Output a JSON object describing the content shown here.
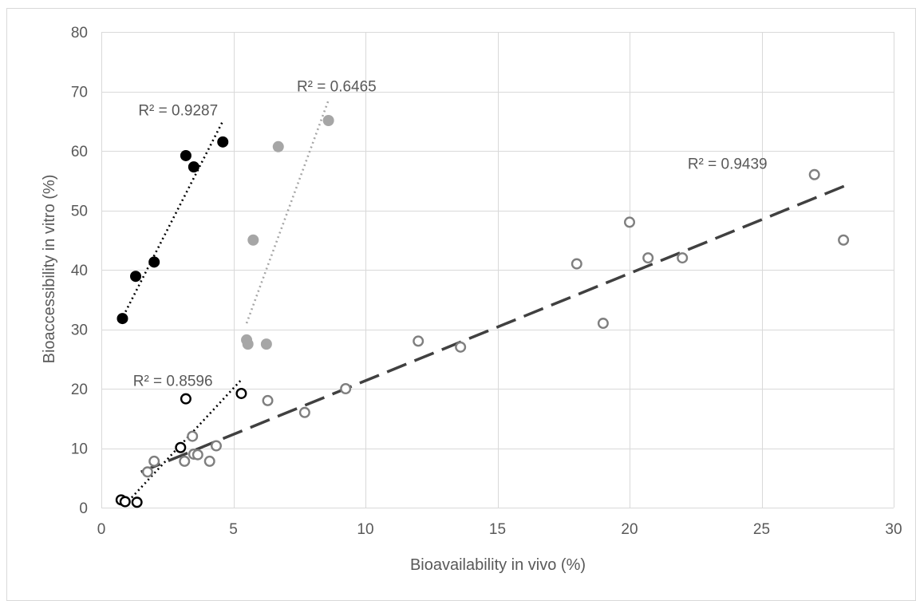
{
  "chart_data": {
    "type": "scatter",
    "xlabel": "Bioavailability in vivo (%)",
    "ylabel": "Bioaccessibility in vitro (%)",
    "xlim": [
      0,
      30
    ],
    "ylim": [
      0,
      80
    ],
    "xticks": [
      "0",
      "5",
      "10",
      "15",
      "20",
      "25",
      "30"
    ],
    "yticks": [
      "0",
      "10",
      "20",
      "30",
      "40",
      "50",
      "60",
      "70",
      "80"
    ],
    "grid": true,
    "series": [
      {
        "marker": "filled-circle",
        "color": "#000000",
        "trendline": "dotted",
        "trendline_color": "#000000",
        "trend_start": [
          0.75,
          31.5
        ],
        "trend_end": [
          4.6,
          65.0
        ],
        "r2_label": "R² = 0.9287",
        "r2_anchor": [
          1.4,
          66.0
        ],
        "points": [
          [
            0.8,
            31.8
          ],
          [
            1.3,
            38.9
          ],
          [
            2.0,
            41.3
          ],
          [
            3.2,
            59.2
          ],
          [
            3.5,
            57.3
          ],
          [
            4.6,
            61.5
          ]
        ]
      },
      {
        "marker": "filled-circle",
        "color": "#a6a6a6",
        "trendline": "dotted",
        "trendline_color": "#a6a6a6",
        "trend_start": [
          5.5,
          31.0
        ],
        "trend_end": [
          8.6,
          68.5
        ],
        "r2_label": "R² = 0.6465",
        "r2_anchor": [
          7.4,
          70.0
        ],
        "points": [
          [
            5.5,
            28.2
          ],
          [
            5.55,
            27.5
          ],
          [
            5.75,
            45.0
          ],
          [
            6.25,
            27.5
          ],
          [
            6.7,
            60.7
          ],
          [
            8.6,
            65.1
          ]
        ]
      },
      {
        "marker": "open-circle",
        "color": "#000000",
        "trendline": "dotted",
        "trendline_color": "#000000",
        "trend_start": [
          0.9,
          0.5
        ],
        "trend_end": [
          5.3,
          21.5
        ],
        "r2_label": "R² = 0.8596",
        "r2_anchor": [
          1.2,
          20.5
        ],
        "points": [
          [
            0.75,
            1.3
          ],
          [
            0.9,
            1.0
          ],
          [
            1.35,
            0.9
          ],
          [
            3.0,
            10.1
          ],
          [
            3.2,
            18.3
          ],
          [
            5.3,
            19.2
          ]
        ]
      },
      {
        "marker": "open-circle",
        "color": "#7f7f7f",
        "trendline": "dashed",
        "trendline_color": "#404040",
        "trend_start": [
          1.5,
          6.0
        ],
        "trend_end": [
          28.2,
          54.2
        ],
        "r2_label": "R² = 0.9439",
        "r2_anchor": [
          22.2,
          57.0
        ],
        "points": [
          [
            1.75,
            6.0
          ],
          [
            2.0,
            7.8
          ],
          [
            3.15,
            7.8
          ],
          [
            3.45,
            12.0
          ],
          [
            3.5,
            9.0
          ],
          [
            3.65,
            8.9
          ],
          [
            4.1,
            7.8
          ],
          [
            4.35,
            10.4
          ],
          [
            6.3,
            18.0
          ],
          [
            7.7,
            16.0
          ],
          [
            9.25,
            20.0
          ],
          [
            12.0,
            28.0
          ],
          [
            13.6,
            27.0
          ],
          [
            18.0,
            41.0
          ],
          [
            19.0,
            31.0
          ],
          [
            20.0,
            48.0
          ],
          [
            20.7,
            42.0
          ],
          [
            22.0,
            42.0
          ],
          [
            27.0,
            56.0
          ],
          [
            28.1,
            45.0
          ]
        ]
      }
    ]
  }
}
